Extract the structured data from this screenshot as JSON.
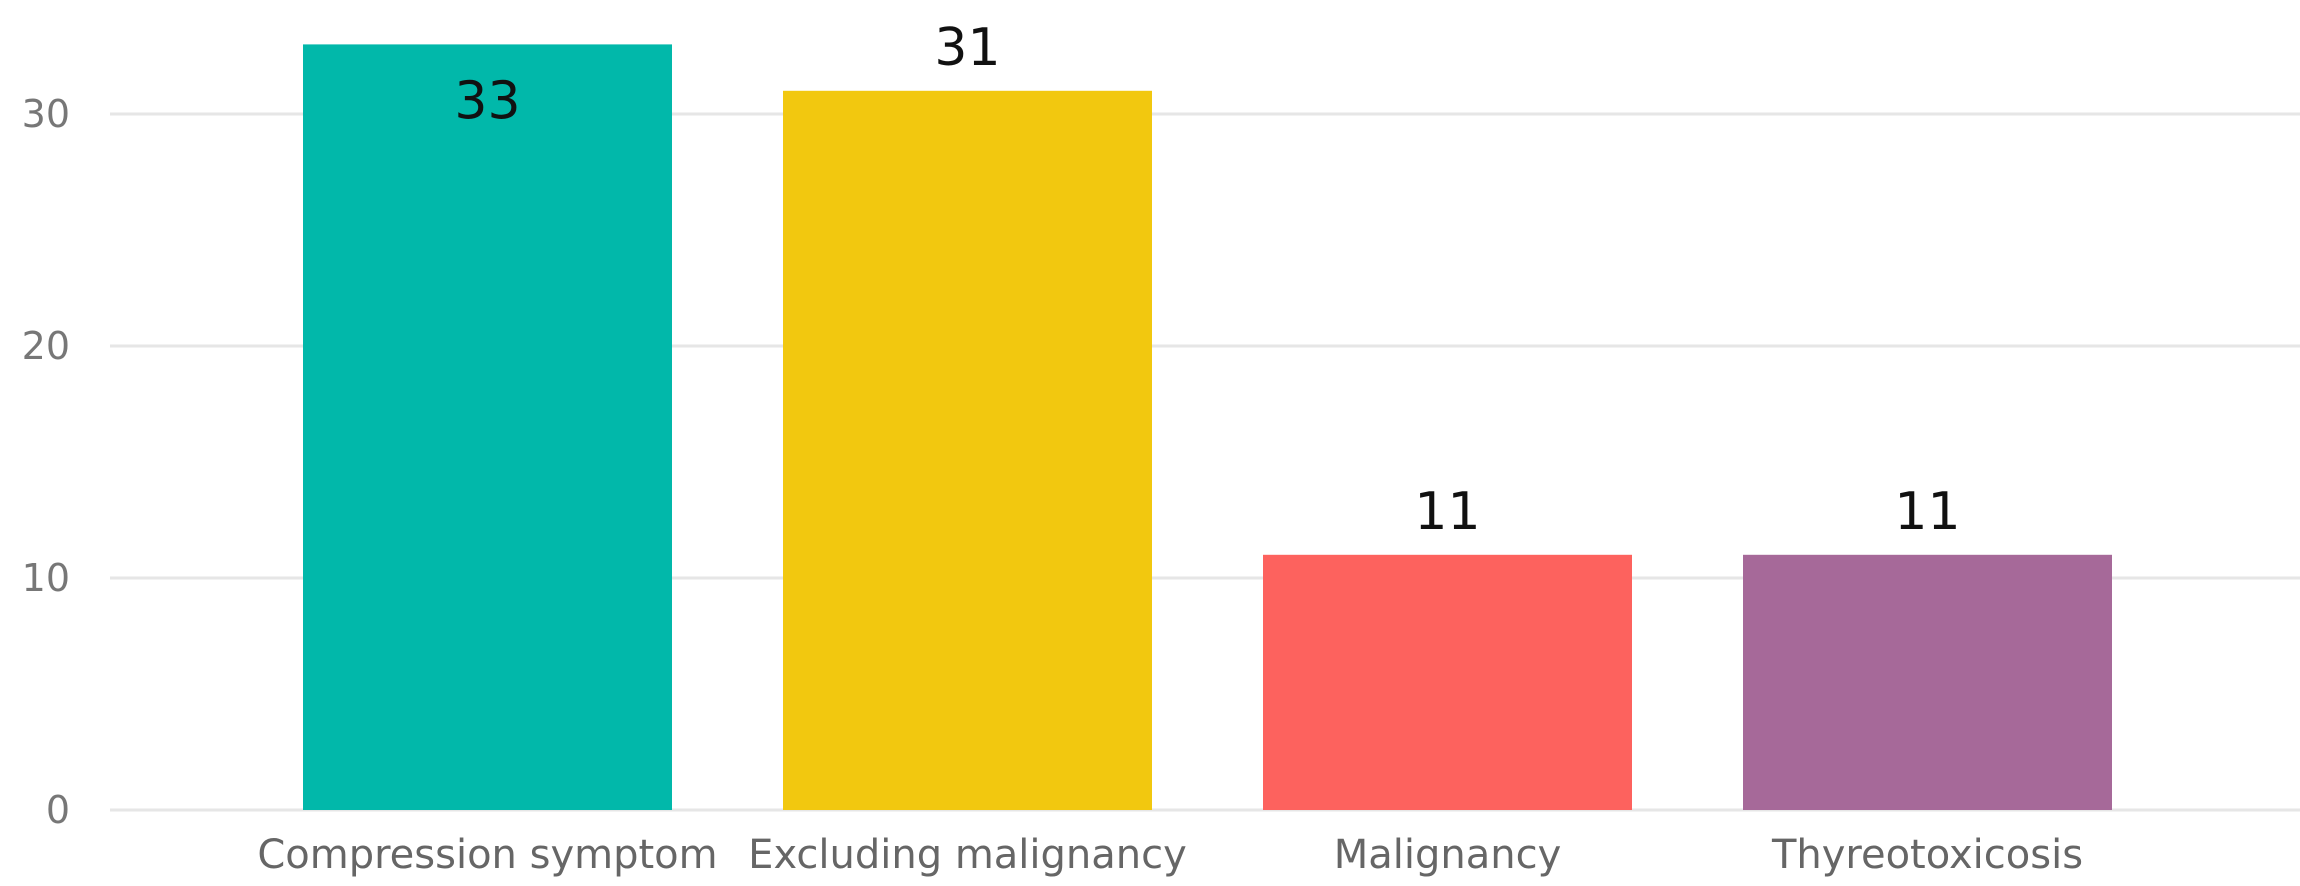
{
  "chart_data": {
    "type": "bar",
    "categories": [
      "Compression symptom",
      "Excluding malignancy",
      "Malignancy",
      "Thyreotoxicosis"
    ],
    "values": [
      33,
      31,
      11,
      11
    ],
    "data_labels": [
      "33",
      "31",
      "11",
      "11"
    ],
    "colors": [
      "#01b8aa",
      "#f2c80f",
      "#fd625e",
      "#a66999"
    ],
    "ylim": [
      0,
      35
    ],
    "yticks": [
      0,
      10,
      20,
      30
    ],
    "ytick_labels": [
      "0",
      "10",
      "20",
      "30"
    ],
    "grid": true,
    "legend": "none",
    "title": "",
    "xlabel": "",
    "ylabel": ""
  }
}
